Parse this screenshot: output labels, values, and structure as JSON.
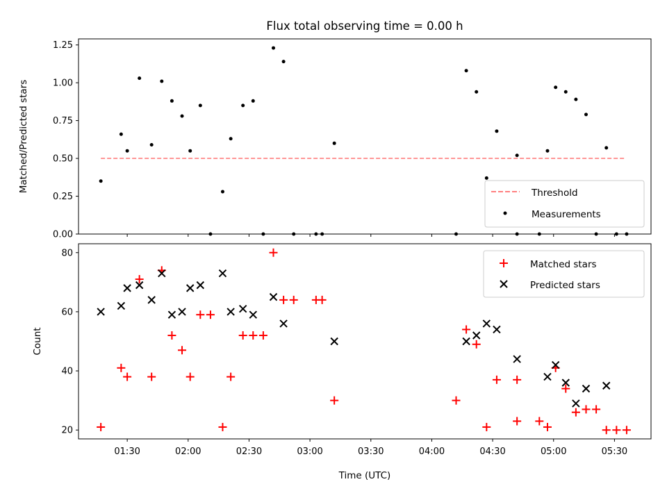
{
  "chart_data": [
    {
      "type": "scatter",
      "title": "Flux total observing time = 0.00 h",
      "ylabel": "Matched/Predicted stars",
      "ylim": [
        0,
        1.29
      ],
      "yticks": [
        "0.00",
        "0.25",
        "0.50",
        "0.75",
        "1.00",
        "1.25"
      ],
      "legend": {
        "placement": "lower-right",
        "entries": [
          "Threshold",
          "Measurements"
        ]
      },
      "series": [
        {
          "name": "Threshold",
          "style": "dashed-line",
          "color": "#ff7f7f",
          "points": [
            [
              "01:17",
              0.5
            ],
            [
              "05:35",
              0.5
            ]
          ]
        },
        {
          "name": "Measurements",
          "style": "dot",
          "color": "#000000",
          "points": [
            [
              "01:17",
              0.35
            ],
            [
              "01:27",
              0.66
            ],
            [
              "01:30",
              0.55
            ],
            [
              "01:36",
              1.03
            ],
            [
              "01:42",
              0.59
            ],
            [
              "01:47",
              1.01
            ],
            [
              "01:52",
              0.88
            ],
            [
              "01:57",
              0.78
            ],
            [
              "02:01",
              0.55
            ],
            [
              "02:06",
              0.85
            ],
            [
              "02:11",
              0.0
            ],
            [
              "02:17",
              0.28
            ],
            [
              "02:21",
              0.63
            ],
            [
              "02:27",
              0.85
            ],
            [
              "02:32",
              0.88
            ],
            [
              "02:37",
              0.0
            ],
            [
              "02:42",
              1.23
            ],
            [
              "02:47",
              1.14
            ],
            [
              "02:52",
              0.0
            ],
            [
              "03:03",
              0.0
            ],
            [
              "03:06",
              0.0
            ],
            [
              "03:12",
              0.6
            ],
            [
              "04:12",
              0.0
            ],
            [
              "04:17",
              1.08
            ],
            [
              "04:22",
              0.94
            ],
            [
              "04:27",
              0.37
            ],
            [
              "04:32",
              0.68
            ],
            [
              "04:42",
              0.52
            ],
            [
              "04:42",
              0.0
            ],
            [
              "04:53",
              0.0
            ],
            [
              "04:57",
              0.55
            ],
            [
              "05:01",
              0.97
            ],
            [
              "05:06",
              0.94
            ],
            [
              "05:11",
              0.89
            ],
            [
              "05:16",
              0.79
            ],
            [
              "05:21",
              0.0
            ],
            [
              "05:26",
              0.57
            ],
            [
              "05:31",
              0.0
            ],
            [
              "05:36",
              0.0
            ]
          ]
        }
      ]
    },
    {
      "type": "scatter",
      "title": "",
      "xlabel": "Time (UTC)",
      "ylabel": "Count",
      "ylim": [
        17,
        83
      ],
      "xlim": [
        "01:06",
        "05:48"
      ],
      "xticks": [
        "01:30",
        "02:00",
        "02:30",
        "03:00",
        "03:30",
        "04:00",
        "04:30",
        "05:00",
        "05:30"
      ],
      "yticks": [
        "20",
        "40",
        "60",
        "80"
      ],
      "legend": {
        "placement": "upper-right",
        "entries": [
          "Matched stars",
          "Predicted stars"
        ]
      },
      "series": [
        {
          "name": "Matched stars",
          "marker": "+",
          "color": "#ff0000",
          "points": [
            [
              "01:17",
              21
            ],
            [
              "01:27",
              41
            ],
            [
              "01:30",
              38
            ],
            [
              "01:36",
              71
            ],
            [
              "01:42",
              38
            ],
            [
              "01:47",
              74
            ],
            [
              "01:52",
              52
            ],
            [
              "01:57",
              47
            ],
            [
              "02:01",
              38
            ],
            [
              "02:06",
              59
            ],
            [
              "02:11",
              59
            ],
            [
              "02:17",
              21
            ],
            [
              "02:21",
              38
            ],
            [
              "02:27",
              52
            ],
            [
              "02:32",
              52
            ],
            [
              "02:37",
              52
            ],
            [
              "02:42",
              80
            ],
            [
              "02:47",
              64
            ],
            [
              "02:52",
              64
            ],
            [
              "03:03",
              64
            ],
            [
              "03:06",
              64
            ],
            [
              "03:12",
              30
            ],
            [
              "04:12",
              30
            ],
            [
              "04:17",
              54
            ],
            [
              "04:22",
              49
            ],
            [
              "04:27",
              21
            ],
            [
              "04:32",
              37
            ],
            [
              "04:42",
              37
            ],
            [
              "04:42",
              23
            ],
            [
              "04:53",
              23
            ],
            [
              "04:57",
              21
            ],
            [
              "05:01",
              41
            ],
            [
              "05:06",
              34
            ],
            [
              "05:11",
              26
            ],
            [
              "05:16",
              27
            ],
            [
              "05:21",
              27
            ],
            [
              "05:26",
              20
            ],
            [
              "05:31",
              20
            ],
            [
              "05:36",
              20
            ]
          ]
        },
        {
          "name": "Predicted stars",
          "marker": "x",
          "color": "#000000",
          "points": [
            [
              "01:17",
              60
            ],
            [
              "01:27",
              62
            ],
            [
              "01:30",
              68
            ],
            [
              "01:36",
              69
            ],
            [
              "01:42",
              64
            ],
            [
              "01:47",
              73
            ],
            [
              "01:52",
              59
            ],
            [
              "01:57",
              60
            ],
            [
              "02:01",
              68
            ],
            [
              "02:06",
              69
            ],
            [
              "02:17",
              73
            ],
            [
              "02:21",
              60
            ],
            [
              "02:27",
              61
            ],
            [
              "02:32",
              59
            ],
            [
              "02:42",
              65
            ],
            [
              "02:47",
              56
            ],
            [
              "03:12",
              50
            ],
            [
              "04:17",
              50
            ],
            [
              "04:22",
              52
            ],
            [
              "04:27",
              56
            ],
            [
              "04:32",
              54
            ],
            [
              "04:42",
              44
            ],
            [
              "04:57",
              38
            ],
            [
              "05:01",
              42
            ],
            [
              "05:06",
              36
            ],
            [
              "05:11",
              29
            ],
            [
              "05:16",
              34
            ],
            [
              "05:26",
              35
            ]
          ]
        }
      ]
    }
  ]
}
